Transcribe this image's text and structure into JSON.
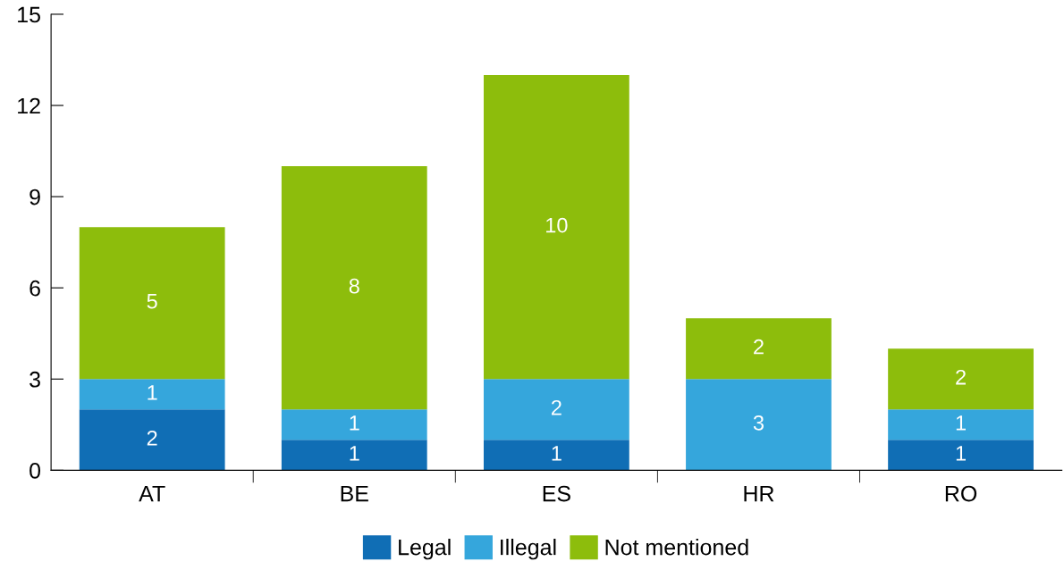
{
  "chart_data": {
    "type": "bar",
    "stacked": true,
    "categories": [
      "AT",
      "BE",
      "ES",
      "HR",
      "RO"
    ],
    "series": [
      {
        "name": "Legal",
        "color": "#106eb5",
        "values": [
          2,
          1,
          1,
          0,
          1
        ],
        "value_labels": [
          "2",
          "1",
          "1",
          null,
          "1"
        ]
      },
      {
        "name": "Illegal",
        "color": "#35a6dc",
        "values": [
          1,
          1,
          2,
          3,
          1
        ],
        "value_labels": [
          "1",
          "1",
          "2",
          "3",
          "1"
        ]
      },
      {
        "name": "Not mentioned",
        "color": "#8dbd0c",
        "values": [
          5,
          8,
          10,
          2,
          2
        ],
        "value_labels": [
          "5",
          "8",
          "10",
          "2",
          "2"
        ]
      }
    ],
    "ylim": [
      0,
      15
    ],
    "yticks": [
      0,
      3,
      6,
      9,
      12,
      15
    ],
    "grid": false,
    "legend": "bottom"
  }
}
